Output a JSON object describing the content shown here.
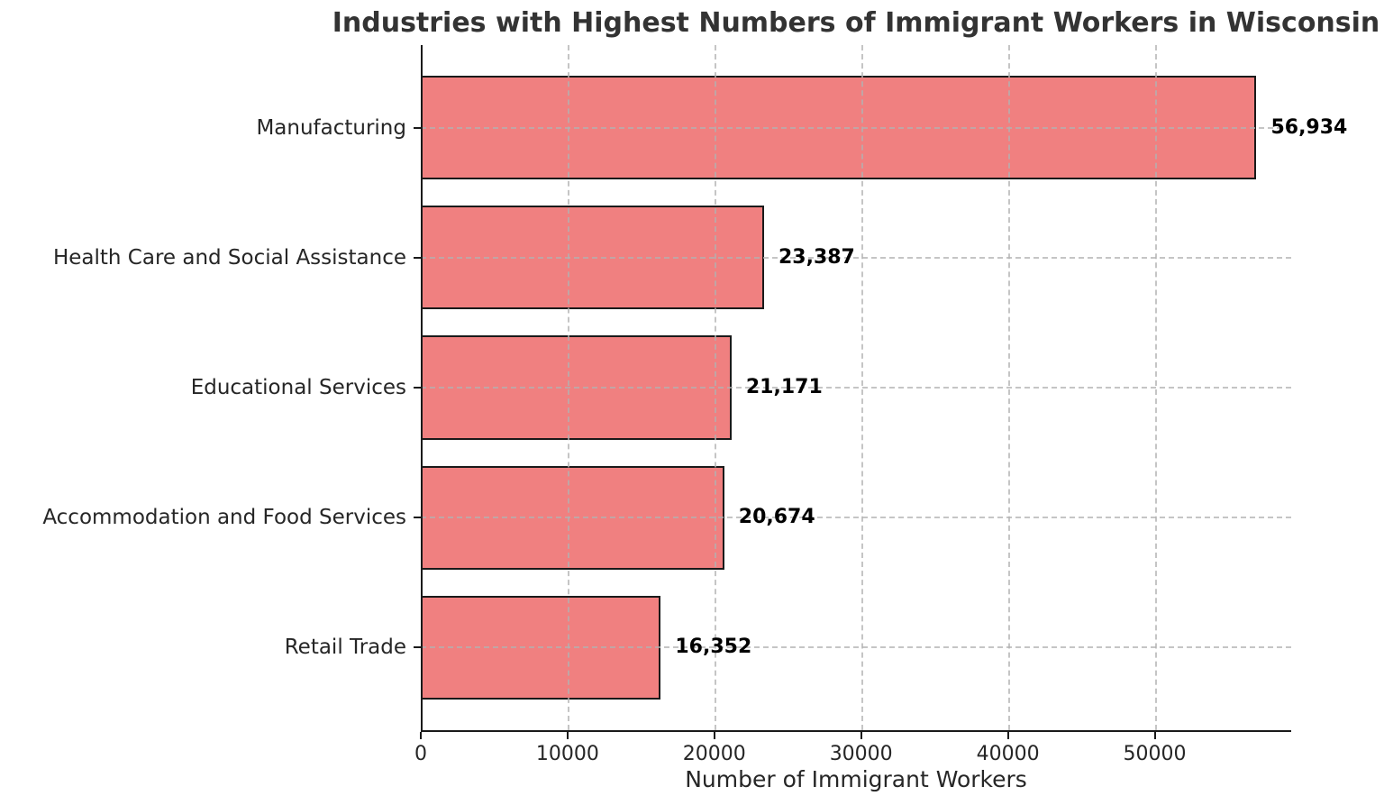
{
  "chart_data": {
    "type": "bar",
    "orientation": "horizontal",
    "title": "Industries with Highest Numbers of Immigrant Workers in Wisconsin",
    "xlabel": "Number of Immigrant Workers",
    "ylabel": "",
    "categories": [
      "Manufacturing",
      "Health Care and Social Assistance",
      "Educational Services",
      "Accommodation and Food Services",
      "Retail Trade"
    ],
    "values": [
      56934,
      23387,
      21171,
      20674,
      16352
    ],
    "value_labels": [
      "56,934",
      "23,387",
      "21,171",
      "20,674",
      "16,352"
    ],
    "xlim": [
      0,
      59300
    ],
    "xticks": [
      0,
      10000,
      20000,
      30000,
      40000,
      50000
    ],
    "xtick_labels": [
      "0",
      "10000",
      "20000",
      "30000",
      "40000",
      "50000"
    ],
    "grid": "dashed both-axes over bars",
    "legend_position": "none",
    "bar_color": "#f08080",
    "bar_edge_color": "#1a1a1a",
    "grid_color": "#b2b2b2",
    "title_color": "#333333",
    "tick_label_color": "#262626",
    "value_label_color": "#000000",
    "background_color": "#ffffff"
  }
}
